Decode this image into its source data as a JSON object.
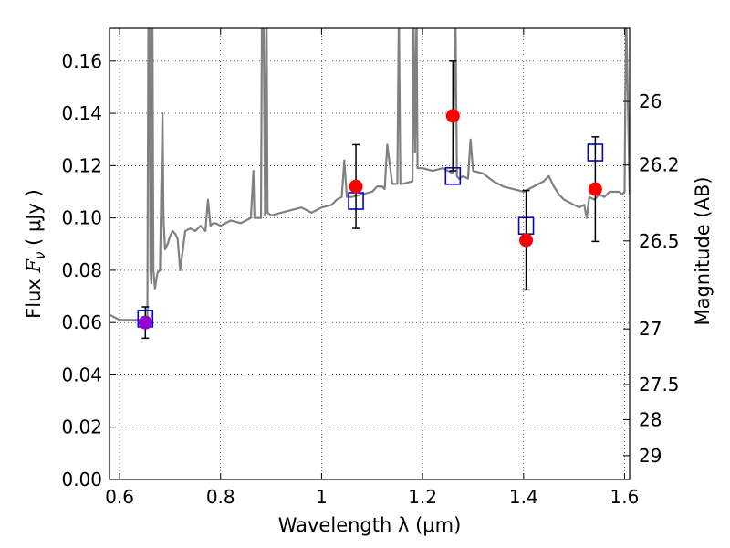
{
  "chart_data": {
    "type": "scatter",
    "xlabel": "Wavelength  λ (μm)",
    "ylabel": "Flux  F_ν  ( μJy )",
    "ylabel_parts": {
      "prefix": "Flux  ",
      "sym": "F",
      "sub": "ν",
      "suffix": "  ( μJy )"
    },
    "y2label": "Magnitude (AB)",
    "xlim": [
      0.58,
      1.61
    ],
    "ylim": [
      0.0,
      0.1725
    ],
    "grid": true,
    "x_ticks": [
      0.6,
      0.8,
      1.0,
      1.2,
      1.4,
      1.6
    ],
    "x_tick_labels": [
      "0.6",
      "0.8",
      "1",
      "1.2",
      "1.4",
      "1.6"
    ],
    "y_ticks": [
      0.0,
      0.02,
      0.04,
      0.06,
      0.08,
      0.1,
      0.12,
      0.14,
      0.16
    ],
    "y_tick_labels": [
      "0.00",
      "0.02",
      "0.04",
      "0.06",
      "0.08",
      "0.10",
      "0.12",
      "0.14",
      "0.16"
    ],
    "y2_ticks": [
      26,
      26.2,
      26.5,
      27,
      27.5,
      28,
      29
    ],
    "y2_tick_labels": [
      "26",
      "26.2",
      "26.5",
      "27",
      "27.5",
      "28",
      "29"
    ],
    "series": [
      {
        "kind": "model_spectrum",
        "color": "#808080",
        "x": [
          0.58,
          0.6,
          0.62,
          0.64,
          0.655,
          0.657,
          0.659,
          0.661,
          0.663,
          0.665,
          0.667,
          0.67,
          0.675,
          0.68,
          0.685,
          0.687,
          0.69,
          0.695,
          0.7,
          0.705,
          0.71,
          0.715,
          0.72,
          0.73,
          0.74,
          0.75,
          0.76,
          0.77,
          0.775,
          0.78,
          0.785,
          0.79,
          0.8,
          0.82,
          0.84,
          0.85,
          0.86,
          0.865,
          0.867,
          0.87,
          0.88,
          0.882,
          0.885,
          0.888,
          0.891,
          0.893,
          0.9,
          0.92,
          0.94,
          0.96,
          0.97,
          0.98,
          1.0,
          1.02,
          1.03,
          1.04,
          1.045,
          1.05,
          1.06,
          1.08,
          1.1,
          1.11,
          1.12,
          1.125,
          1.13,
          1.14,
          1.15,
          1.153,
          1.156,
          1.16,
          1.18,
          1.182,
          1.185,
          1.188,
          1.19,
          1.2,
          1.22,
          1.24,
          1.26,
          1.265,
          1.268,
          1.272,
          1.28,
          1.29,
          1.295,
          1.3,
          1.32,
          1.34,
          1.36,
          1.38,
          1.4,
          1.42,
          1.44,
          1.45,
          1.46,
          1.47,
          1.48,
          1.49,
          1.5,
          1.51,
          1.52,
          1.525,
          1.53,
          1.54,
          1.55,
          1.56,
          1.57,
          1.58,
          1.59,
          1.595,
          1.6,
          1.603,
          1.61
        ],
        "y": [
          0.063,
          0.061,
          0.061,
          0.061,
          0.062,
          0.18,
          0.18,
          0.08,
          0.075,
          0.18,
          0.08,
          0.073,
          0.079,
          0.08,
          0.14,
          0.1,
          0.088,
          0.09,
          0.093,
          0.095,
          0.094,
          0.092,
          0.08,
          0.095,
          0.096,
          0.095,
          0.097,
          0.095,
          0.107,
          0.097,
          0.098,
          0.098,
          0.097,
          0.099,
          0.098,
          0.099,
          0.1,
          0.118,
          0.1,
          0.1,
          0.1,
          0.18,
          0.18,
          0.101,
          0.18,
          0.102,
          0.101,
          0.102,
          0.103,
          0.104,
          0.103,
          0.102,
          0.104,
          0.105,
          0.107,
          0.108,
          0.122,
          0.108,
          0.108,
          0.109,
          0.11,
          0.112,
          0.112,
          0.111,
          0.128,
          0.113,
          0.113,
          0.18,
          0.113,
          0.113,
          0.114,
          0.18,
          0.125,
          0.18,
          0.119,
          0.119,
          0.118,
          0.119,
          0.117,
          0.18,
          0.116,
          0.115,
          0.116,
          0.115,
          0.13,
          0.118,
          0.117,
          0.114,
          0.112,
          0.111,
          0.11,
          0.112,
          0.114,
          0.116,
          0.112,
          0.109,
          0.107,
          0.106,
          0.105,
          0.104,
          0.105,
          0.1,
          0.108,
          0.107,
          0.109,
          0.108,
          0.11,
          0.11,
          0.11,
          0.109,
          0.11,
          0.18,
          0.109
        ]
      },
      {
        "kind": "observed",
        "marker": "filled-circle",
        "color": "#ff0000",
        "x": [
          1.068,
          1.26,
          1.405,
          1.542
        ],
        "y": [
          0.112,
          0.139,
          0.0915,
          0.111
        ],
        "yerr": [
          0.016,
          0.021,
          0.019,
          0.02
        ]
      },
      {
        "kind": "observed",
        "marker": "filled-circle",
        "color": "#9400d3",
        "x": [
          0.651
        ],
        "y": [
          0.06
        ],
        "yerr": [
          0.006
        ]
      },
      {
        "kind": "synthetic",
        "marker": "open-square",
        "color": "#0000cc",
        "x": [
          0.651,
          1.068,
          1.26,
          1.405,
          1.542
        ],
        "y": [
          0.0615,
          0.1065,
          0.116,
          0.097,
          0.125
        ]
      }
    ]
  }
}
